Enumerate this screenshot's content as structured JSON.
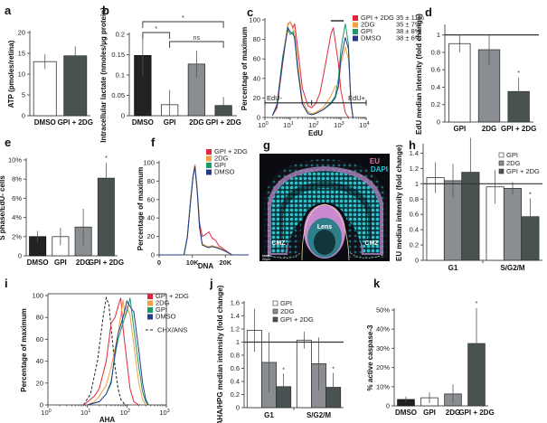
{
  "figure": {
    "panels": [
      "a",
      "b",
      "c",
      "d",
      "e",
      "f",
      "g",
      "h",
      "i",
      "j",
      "k"
    ]
  },
  "colors": {
    "dmso_bar": "#222222",
    "gpi_bar": "#ffffff",
    "twodg_bar": "#8a8e92",
    "gpi2dg_bar": "#475251",
    "gpi2dg_line": "#e0283c",
    "twodg_line": "#f0a040",
    "gpi_line": "#1a9a6a",
    "dmso_line": "#2a3a8a",
    "chx_line": "#222222"
  },
  "chart_data": [
    {
      "panel": "a",
      "type": "bar",
      "title": "",
      "xlabel": "",
      "ylabel": "ATP (pmoles/retina)",
      "ylim": [
        0,
        20
      ],
      "yticks": [
        "0",
        "5",
        "10",
        "15",
        "20"
      ],
      "categories": [
        "DMSO",
        "GPI + 2DG"
      ],
      "values": [
        13,
        14.4
      ],
      "errors": [
        1.8,
        2.3
      ],
      "bar_styles": [
        "gpi_bar",
        "gpi2dg_bar"
      ]
    },
    {
      "panel": "b",
      "type": "bar",
      "ylabel": "Intracellular lactate (nmoles/µg protein)",
      "ylim": [
        0,
        0.2
      ],
      "yticks": [
        "0",
        "0.05",
        "0.1",
        "0.15",
        "0.2"
      ],
      "categories": [
        "DMSO",
        "GPI",
        "2DG",
        "GPI + 2DG"
      ],
      "values": [
        0.148,
        0.027,
        0.127,
        0.025
      ],
      "errors": [
        0.052,
        0.036,
        0.033,
        0.021
      ],
      "bar_styles": [
        "dmso_bar",
        "gpi_bar",
        "twodg_bar",
        "gpi2dg_bar"
      ],
      "annotations": [
        {
          "from": "DMSO",
          "to": "GPI + 2DG",
          "label": "*"
        },
        {
          "from": "DMSO",
          "to": "GPI",
          "label": "*"
        },
        {
          "from": "GPI",
          "to": "GPI + 2DG",
          "label": "ns"
        }
      ]
    },
    {
      "panel": "c",
      "type": "line",
      "xscale": "log",
      "xlabel": "EdU",
      "ylabel": "Percentage of maximum",
      "xlim": [
        1,
        10000
      ],
      "ylim": [
        0,
        100
      ],
      "xticks": [
        "10^0",
        "10^1",
        "10^2",
        "10^3",
        "10^4"
      ],
      "yticks": [
        "0",
        "20",
        "40",
        "60",
        "80",
        "100"
      ],
      "gates": {
        "left": "EdU-",
        "right": "EdU+"
      },
      "legend": [
        {
          "name": "GPI + 2DG",
          "value": "35 ± 11%",
          "color": "gpi2dg_line"
        },
        {
          "name": "2DG",
          "value": "35 ± 7%",
          "color": "twodg_line"
        },
        {
          "name": "GPI",
          "value": "38 ± 8%",
          "color": "gpi_line"
        },
        {
          "name": "DMSO",
          "value": "38 ± 6%",
          "color": "dmso_line"
        }
      ],
      "series": [
        {
          "name": "GPI + 2DG",
          "color": "gpi2dg_line",
          "x": [
            2,
            3,
            5,
            8,
            10,
            13,
            15,
            20,
            30,
            50,
            70,
            100,
            150,
            250,
            400,
            500,
            600,
            800,
            1000,
            1500,
            2000
          ],
          "y": [
            2,
            10,
            55,
            95,
            98,
            92,
            96,
            70,
            30,
            12,
            10,
            14,
            25,
            55,
            85,
            92,
            78,
            55,
            28,
            5,
            0
          ]
        },
        {
          "name": "2DG",
          "color": "twodg_line",
          "x": [
            2,
            3,
            5,
            8,
            10,
            13,
            15,
            20,
            30,
            50,
            70,
            100,
            200,
            400,
            600,
            800,
            1000,
            1500,
            2000,
            2500,
            3000
          ],
          "y": [
            2,
            12,
            60,
            96,
            98,
            90,
            88,
            55,
            18,
            6,
            4,
            5,
            10,
            22,
            32,
            30,
            55,
            72,
            60,
            20,
            0
          ]
        },
        {
          "name": "GPI",
          "color": "gpi_line",
          "x": [
            2,
            3,
            5,
            8,
            10,
            13,
            15,
            20,
            30,
            50,
            70,
            100,
            200,
            400,
            600,
            800,
            1000,
            1500,
            2000,
            2500,
            3000
          ],
          "y": [
            2,
            14,
            62,
            90,
            85,
            88,
            80,
            50,
            14,
            4,
            3,
            4,
            8,
            15,
            22,
            40,
            70,
            96,
            75,
            15,
            0
          ]
        },
        {
          "name": "DMSO",
          "color": "dmso_line",
          "x": [
            2,
            3,
            5,
            8,
            10,
            13,
            15,
            20,
            30,
            50,
            70,
            100,
            200,
            400,
            600,
            800,
            1000,
            1500,
            2000,
            2500,
            3000
          ],
          "y": [
            2,
            12,
            58,
            92,
            88,
            85,
            82,
            48,
            14,
            4,
            3,
            4,
            8,
            14,
            20,
            32,
            60,
            82,
            70,
            15,
            0
          ]
        }
      ]
    },
    {
      "panel": "d",
      "type": "bar",
      "ylabel": "EdU median intensity (fold change)",
      "ylim": [
        0,
        1.1
      ],
      "yticks": [
        "0",
        "0.2",
        "0.4",
        "0.6",
        "0.8",
        "1"
      ],
      "reference_line": 1,
      "categories": [
        "GPI",
        "2DG",
        "GPI + 2DG"
      ],
      "values": [
        0.9,
        0.83,
        0.35
      ],
      "errors": [
        0.1,
        0.18,
        0.16
      ],
      "bar_styles": [
        "gpi_bar",
        "twodg_bar",
        "gpi2dg_bar"
      ],
      "significance": [
        "",
        "",
        "*"
      ]
    },
    {
      "panel": "e",
      "type": "bar",
      "ylabel": "S phase/EdU- cells",
      "ylim": [
        0,
        10
      ],
      "yticks": [
        "0",
        "2%",
        "4%",
        "6%",
        "8%",
        "10%"
      ],
      "categories": [
        "DMSO",
        "GPI",
        "2DG",
        "GPI + 2DG"
      ],
      "values": [
        2.0,
        2.0,
        3.0,
        8.1
      ],
      "errors": [
        0.6,
        0.9,
        1.9,
        1.6
      ],
      "bar_styles": [
        "dmso_bar",
        "gpi_bar",
        "twodg_bar",
        "gpi2dg_bar"
      ],
      "significance": [
        "",
        "",
        "",
        "*"
      ]
    },
    {
      "panel": "f",
      "type": "line",
      "xlabel": "DNA",
      "ylabel": "Percentage of maximum",
      "xlim": [
        0,
        27000
      ],
      "ylim": [
        0,
        100
      ],
      "xticks": [
        "0",
        "10K",
        "20K"
      ],
      "yticks": [
        "0",
        "20",
        "40",
        "60",
        "80",
        "100"
      ],
      "legend": [
        {
          "name": "GPI + 2DG",
          "color": "gpi2dg_line"
        },
        {
          "name": "2DG",
          "color": "twodg_line"
        },
        {
          "name": "GPI",
          "color": "gpi_line"
        },
        {
          "name": "DMSO",
          "color": "dmso_line"
        }
      ],
      "series": [
        {
          "name": "GPI + 2DG",
          "color": "gpi2dg_line",
          "x": [
            0,
            7500,
            8500,
            9500,
            10200,
            10800,
            11500,
            12200,
            13000,
            14000,
            15000,
            16000,
            17000,
            18000,
            20000,
            22000,
            27000
          ],
          "y": [
            0,
            0,
            20,
            60,
            85,
            98,
            70,
            35,
            20,
            22,
            25,
            18,
            16,
            10,
            5,
            0,
            0
          ]
        },
        {
          "name": "2DG",
          "color": "twodg_line",
          "x": [
            0,
            7500,
            8500,
            9500,
            10200,
            10800,
            11500,
            12200,
            13000,
            14000,
            15000,
            16000,
            17000,
            18000,
            20000,
            22000,
            27000
          ],
          "y": [
            0,
            0,
            20,
            60,
            85,
            98,
            70,
            30,
            12,
            10,
            9,
            10,
            9,
            8,
            4,
            0,
            0
          ]
        },
        {
          "name": "GPI",
          "color": "gpi_line",
          "x": [
            0,
            7500,
            8500,
            9500,
            10200,
            10800,
            11500,
            12200,
            13000,
            14000,
            15000,
            16000,
            17000,
            18000,
            20000,
            22000,
            27000
          ],
          "y": [
            0,
            0,
            19,
            58,
            84,
            96,
            68,
            30,
            11,
            9,
            8,
            9,
            8,
            7,
            4,
            0,
            0
          ]
        },
        {
          "name": "DMSO",
          "color": "dmso_line",
          "x": [
            0,
            7500,
            8500,
            9500,
            10200,
            10800,
            11500,
            12200,
            13000,
            14000,
            15000,
            16000,
            17000,
            18000,
            20000,
            22000,
            27000
          ],
          "y": [
            0,
            0,
            19,
            58,
            84,
            96,
            68,
            30,
            11,
            9,
            8,
            9,
            8,
            7,
            4,
            0,
            0
          ]
        }
      ]
    },
    {
      "panel": "h",
      "type": "bar",
      "ylabel": "EU median intensity (fold change)",
      "ylim": [
        0,
        1.5
      ],
      "yticks": [
        "0",
        "0.2",
        "0.4",
        "0.6",
        "0.8",
        "1",
        "1.2",
        "1.4"
      ],
      "reference_line": 1,
      "categories": [
        "G1",
        "S/G2/M"
      ],
      "series": [
        {
          "name": "GPI",
          "style": "gpi_bar",
          "values": [
            1.08,
            0.96
          ],
          "errors": [
            0.2,
            0.22
          ]
        },
        {
          "name": "2DG",
          "style": "twodg_bar",
          "values": [
            1.04,
            0.94
          ],
          "errors": [
            0.22,
            0.08
          ]
        },
        {
          "name": "GPI + 2DG",
          "style": "gpi2dg_bar",
          "values": [
            1.15,
            0.57
          ],
          "errors": [
            0.45,
            0.24
          ]
        }
      ],
      "significance": [
        [
          "",
          "",
          ""
        ],
        [
          "",
          "",
          "*"
        ]
      ],
      "legend_placement": "top-right"
    },
    {
      "panel": "i",
      "type": "line",
      "xscale": "log",
      "xlabel": "AHA",
      "ylabel": "Percentage of maximum",
      "xlim": [
        1,
        1000
      ],
      "ylim": [
        0,
        100
      ],
      "xticks": [
        "10^0",
        "10^1",
        "10^2",
        "10^3"
      ],
      "yticks": [
        "0",
        "20",
        "40",
        "60",
        "80",
        "100"
      ],
      "legend": [
        {
          "name": "GPI + 2DG",
          "color": "gpi2dg_line"
        },
        {
          "name": "2DG",
          "color": "twodg_line"
        },
        {
          "name": "GPI",
          "color": "gpi_line"
        },
        {
          "name": "DMSO",
          "color": "dmso_line"
        },
        {
          "name": "CHX/ANS",
          "color": "chx_line",
          "dashed": true
        }
      ],
      "series": [
        {
          "name": "CHX/ANS",
          "color": "chx_line",
          "dashed": true,
          "x": [
            8,
            12,
            18,
            25,
            30,
            35,
            40,
            50,
            60,
            70,
            90,
            110
          ],
          "y": [
            0,
            10,
            40,
            80,
            98,
            92,
            70,
            35,
            15,
            5,
            0,
            0
          ]
        },
        {
          "name": "GPI + 2DG",
          "color": "gpi2dg_line",
          "x": [
            8,
            12,
            15,
            20,
            30,
            40,
            50,
            60,
            70,
            80,
            100,
            120,
            150,
            200
          ],
          "y": [
            0,
            5,
            8,
            15,
            40,
            75,
            80,
            90,
            98,
            70,
            40,
            15,
            3,
            0
          ]
        },
        {
          "name": "2DG",
          "color": "twodg_line",
          "x": [
            10,
            15,
            20,
            30,
            40,
            60,
            80,
            90,
            100,
            120,
            150,
            200,
            250,
            300
          ],
          "y": [
            0,
            3,
            8,
            18,
            35,
            65,
            96,
            80,
            90,
            82,
            55,
            20,
            5,
            0
          ]
        },
        {
          "name": "GPI",
          "color": "gpi_line",
          "x": [
            10,
            20,
            30,
            40,
            50,
            60,
            80,
            100,
            120,
            130,
            150,
            200,
            250,
            300,
            350
          ],
          "y": [
            0,
            3,
            10,
            22,
            45,
            60,
            75,
            85,
            98,
            88,
            70,
            35,
            12,
            3,
            0
          ]
        },
        {
          "name": "DMSO",
          "color": "dmso_line",
          "x": [
            10,
            20,
            30,
            40,
            50,
            60,
            80,
            100,
            120,
            150,
            200,
            250,
            300,
            350
          ],
          "y": [
            0,
            3,
            10,
            20,
            48,
            65,
            80,
            95,
            90,
            85,
            50,
            20,
            5,
            0
          ]
        }
      ]
    },
    {
      "panel": "j",
      "type": "bar",
      "ylabel": "AHA/HPG median intensity (fold change)",
      "ylim": [
        0,
        1.6
      ],
      "yticks": [
        "0",
        "0.2",
        "0.4",
        "0.6",
        "0.8",
        "1",
        "1.2",
        "1.4",
        "1.6"
      ],
      "reference_line": 1,
      "categories": [
        "G1",
        "S/G2/M"
      ],
      "series": [
        {
          "name": "GPI",
          "style": "gpi_bar",
          "values": [
            1.18,
            1.03
          ],
          "errors": [
            0.33,
            0.13
          ]
        },
        {
          "name": "2DG",
          "style": "twodg_bar",
          "values": [
            0.69,
            0.67
          ],
          "errors": [
            0.46,
            0.4
          ]
        },
        {
          "name": "GPI + 2DG",
          "style": "gpi2dg_bar",
          "values": [
            0.32,
            0.31
          ],
          "errors": [
            0.2,
            0.22
          ]
        }
      ],
      "significance": [
        [
          "",
          "",
          "*"
        ],
        [
          "",
          "",
          "*"
        ]
      ],
      "legend_placement": "top-right"
    },
    {
      "panel": "k",
      "type": "bar",
      "ylabel": "% active caspase-3",
      "ylim": [
        0,
        50
      ],
      "yticks": [
        "0",
        "10%",
        "20%",
        "30%",
        "40%",
        "50%"
      ],
      "categories": [
        "DMSO",
        "GPI",
        "2DG",
        "GPI + 2DG"
      ],
      "values": [
        3.3,
        4.2,
        6.2,
        32.5
      ],
      "errors": [
        1.5,
        2.8,
        5.0,
        18.5
      ],
      "bar_styles": [
        "dmso_bar",
        "gpi_bar",
        "twodg_bar",
        "gpi2dg_bar"
      ],
      "significance": [
        "",
        "",
        "",
        "*"
      ]
    }
  ],
  "image_panel": {
    "panel": "g",
    "labels": {
      "eu": "EU",
      "dapi": "DAPI",
      "lens": "Lens",
      "cmz_left": "CMZ",
      "cmz_right": "CMZ",
      "scale": "20µm"
    }
  }
}
